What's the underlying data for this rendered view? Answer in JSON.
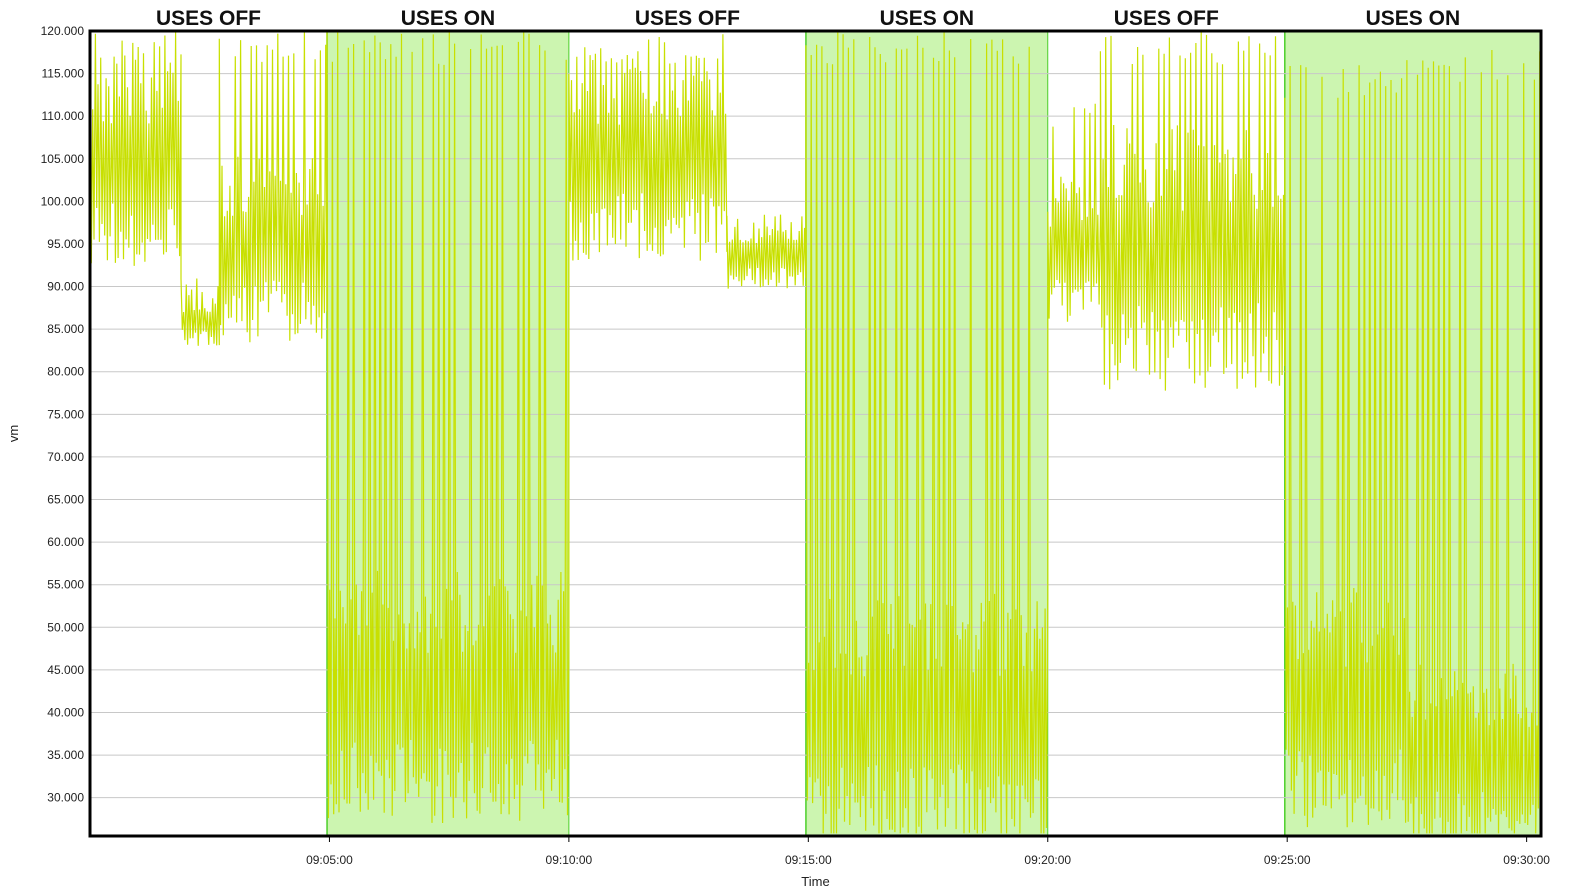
{
  "chart_data": {
    "type": "line",
    "xlabel": "Time",
    "ylabel": "vm",
    "ylim": [
      25.5,
      120
    ],
    "y_ticks": [
      "30.000",
      "35.000",
      "40.000",
      "45.000",
      "50.000",
      "55.000",
      "60.000",
      "65.000",
      "70.000",
      "75.000",
      "80.000",
      "85.000",
      "90.000",
      "95.000",
      "100.000",
      "105.000",
      "110.000",
      "115.000",
      "120.000"
    ],
    "x_ticks": [
      "09:05:00",
      "09:10:00",
      "09:15:00",
      "09:20:00",
      "09:25:00",
      "09:30:00"
    ],
    "x_range_minutes": [
      0,
      30.3
    ],
    "grid": true,
    "colors": {
      "series": "#c8e000",
      "band_fill": "#ccf5b0",
      "band_edge": "#4ccf2a",
      "grid": "#c8c8c8",
      "frame": "#000000"
    },
    "bands": [
      {
        "label": "USES OFF",
        "state": "off",
        "start_min": 0,
        "end_min": 4.95
      },
      {
        "label": "USES ON",
        "state": "on",
        "start_min": 4.95,
        "end_min": 10.0
      },
      {
        "label": "USES OFF",
        "state": "off",
        "start_min": 10.0,
        "end_min": 14.95
      },
      {
        "label": "USES ON",
        "state": "on",
        "start_min": 14.95,
        "end_min": 20.0
      },
      {
        "label": "USES OFF",
        "state": "off",
        "start_min": 20.0,
        "end_min": 24.95
      },
      {
        "label": "USES ON",
        "state": "on",
        "start_min": 24.95,
        "end_min": 30.3
      }
    ],
    "series": [
      {
        "segments": [
          {
            "start_min": 0.0,
            "end_min": 1.9,
            "base": [
              113,
              96
            ],
            "spike_to": 120
          },
          {
            "start_min": 1.9,
            "end_min": 2.7,
            "base": [
              88,
              84
            ],
            "spike_to": 92
          },
          {
            "start_min": 2.7,
            "end_min": 4.95,
            "base": [
              102,
              87
            ],
            "spike_to": 120
          },
          {
            "start_min": 4.95,
            "end_min": 10.0,
            "base": [
              52,
              32
            ],
            "spike_to": 120
          },
          {
            "start_min": 10.0,
            "end_min": 13.3,
            "base": [
              113,
              97
            ],
            "spike_to": 120
          },
          {
            "start_min": 13.3,
            "end_min": 14.95,
            "base": [
              96,
              91
            ],
            "spike_to": 101
          },
          {
            "start_min": 14.95,
            "end_min": 20.0,
            "base": [
              49,
              29
            ],
            "spike_to": 120
          },
          {
            "start_min": 20.0,
            "end_min": 21.1,
            "base": [
              100,
              88
            ],
            "spike_to": 112
          },
          {
            "start_min": 21.1,
            "end_min": 24.95,
            "base": [
              104,
              83
            ],
            "spike_to": 120
          },
          {
            "start_min": 24.95,
            "end_min": 27.5,
            "base": [
              50,
              31
            ],
            "spike_to": 116
          },
          {
            "start_min": 27.5,
            "end_min": 30.3,
            "base": [
              42,
              27
            ],
            "spike_to": 118
          }
        ]
      }
    ]
  }
}
